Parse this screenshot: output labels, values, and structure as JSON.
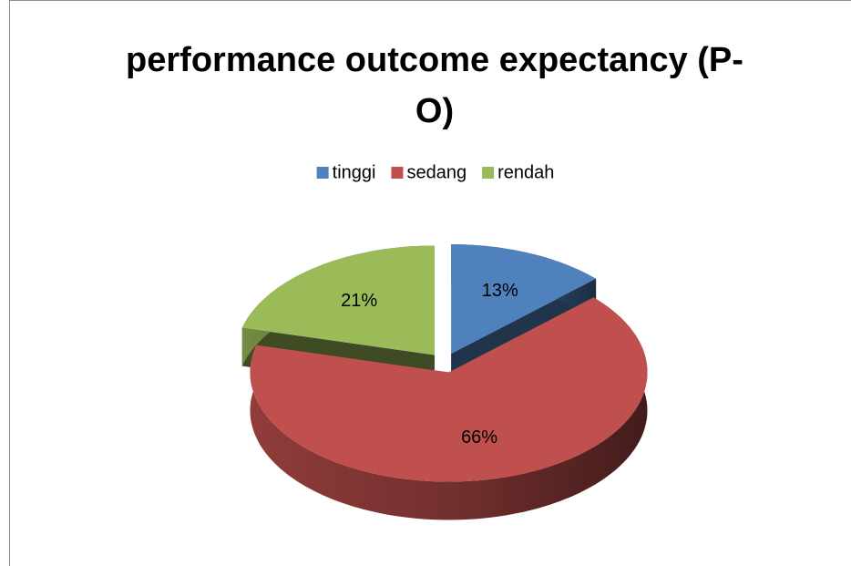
{
  "chart_data": {
    "type": "pie",
    "title": "performance outcome expectancy (P-O)",
    "categories": [
      "tinggi",
      "sedang",
      "rendah"
    ],
    "values": [
      13,
      66,
      21
    ],
    "value_labels": [
      "13%",
      "66%",
      "21%"
    ],
    "colors": [
      "#4f81bd",
      "#c0504d",
      "#9bbb59"
    ],
    "legend": "top"
  }
}
